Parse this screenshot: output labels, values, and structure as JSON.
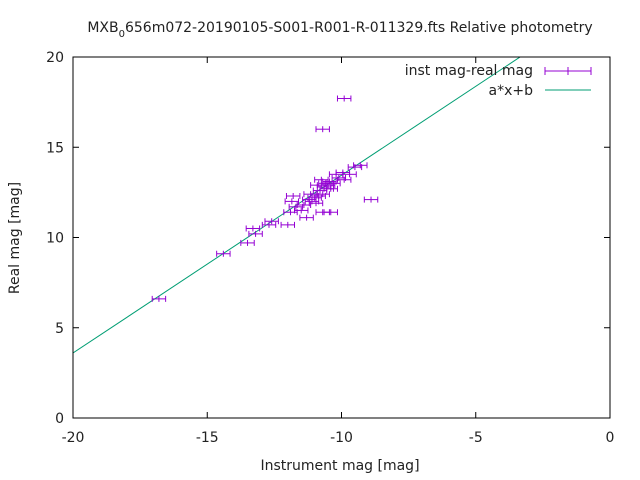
{
  "chart_data": {
    "type": "scatter",
    "title": {
      "prefix": "MXB",
      "subscript": "0",
      "suffix": "656m072-20190105-S001-R001-R-011329.fts Relative photometry"
    },
    "xlabel": "Instrument mag [mag]",
    "ylabel": "Real mag [mag]",
    "xlim": [
      -20,
      0
    ],
    "ylim": [
      0,
      20
    ],
    "xticks": [
      -20,
      -15,
      -10,
      -5,
      0
    ],
    "yticks": [
      0,
      5,
      10,
      15,
      20
    ],
    "xtick_labels": [
      "-20",
      "-15",
      "-10",
      "-5",
      "0"
    ],
    "ytick_labels": [
      "0",
      "5",
      "10",
      "15",
      "20"
    ],
    "grid": false,
    "legend_position": "top-right",
    "colors": {
      "points": "#9400d3",
      "fit": "#009e73",
      "axes": "#000000"
    },
    "series": [
      {
        "name": "inst mag-real mag",
        "style": "points-with-x-errorbars",
        "xerr": 0.25,
        "points": [
          [
            -16.8,
            6.6
          ],
          [
            -14.4,
            9.1
          ],
          [
            -13.5,
            9.7
          ],
          [
            -13.3,
            10.5
          ],
          [
            -13.2,
            10.2
          ],
          [
            -12.7,
            10.7
          ],
          [
            -12.6,
            10.9
          ],
          [
            -12.0,
            10.7
          ],
          [
            -11.9,
            11.4
          ],
          [
            -11.85,
            12.0
          ],
          [
            -11.8,
            12.3
          ],
          [
            -11.7,
            11.7
          ],
          [
            -11.5,
            11.5
          ],
          [
            -11.4,
            11.8
          ],
          [
            -11.3,
            11.1
          ],
          [
            -11.2,
            12.1
          ],
          [
            -11.15,
            12.4
          ],
          [
            -11.1,
            12.0
          ],
          [
            -11.0,
            12.2
          ],
          [
            -10.95,
            11.9
          ],
          [
            -10.9,
            12.9
          ],
          [
            -10.85,
            12.3
          ],
          [
            -10.8,
            12.6
          ],
          [
            -10.75,
            13.2
          ],
          [
            -10.7,
            12.4
          ],
          [
            -10.65,
            12.8
          ],
          [
            -10.6,
            13.0
          ],
          [
            -10.55,
            12.7
          ],
          [
            -10.5,
            12.9
          ],
          [
            -10.45,
            13.1
          ],
          [
            -10.4,
            12.7
          ],
          [
            -10.3,
            13.0
          ],
          [
            -10.2,
            13.5
          ],
          [
            -10.1,
            13.3
          ],
          [
            -9.95,
            13.6
          ],
          [
            -9.9,
            13.2
          ],
          [
            -9.7,
            13.5
          ],
          [
            -9.5,
            13.9
          ],
          [
            -9.3,
            14.0
          ],
          [
            -8.9,
            12.1
          ],
          [
            -10.4,
            11.4
          ],
          [
            -10.7,
            11.4
          ],
          [
            -10.7,
            16.0
          ],
          [
            -9.9,
            17.7
          ]
        ]
      },
      {
        "name": "a*x+b",
        "style": "line",
        "slope": 0.985,
        "intercept": 23.3
      }
    ]
  }
}
